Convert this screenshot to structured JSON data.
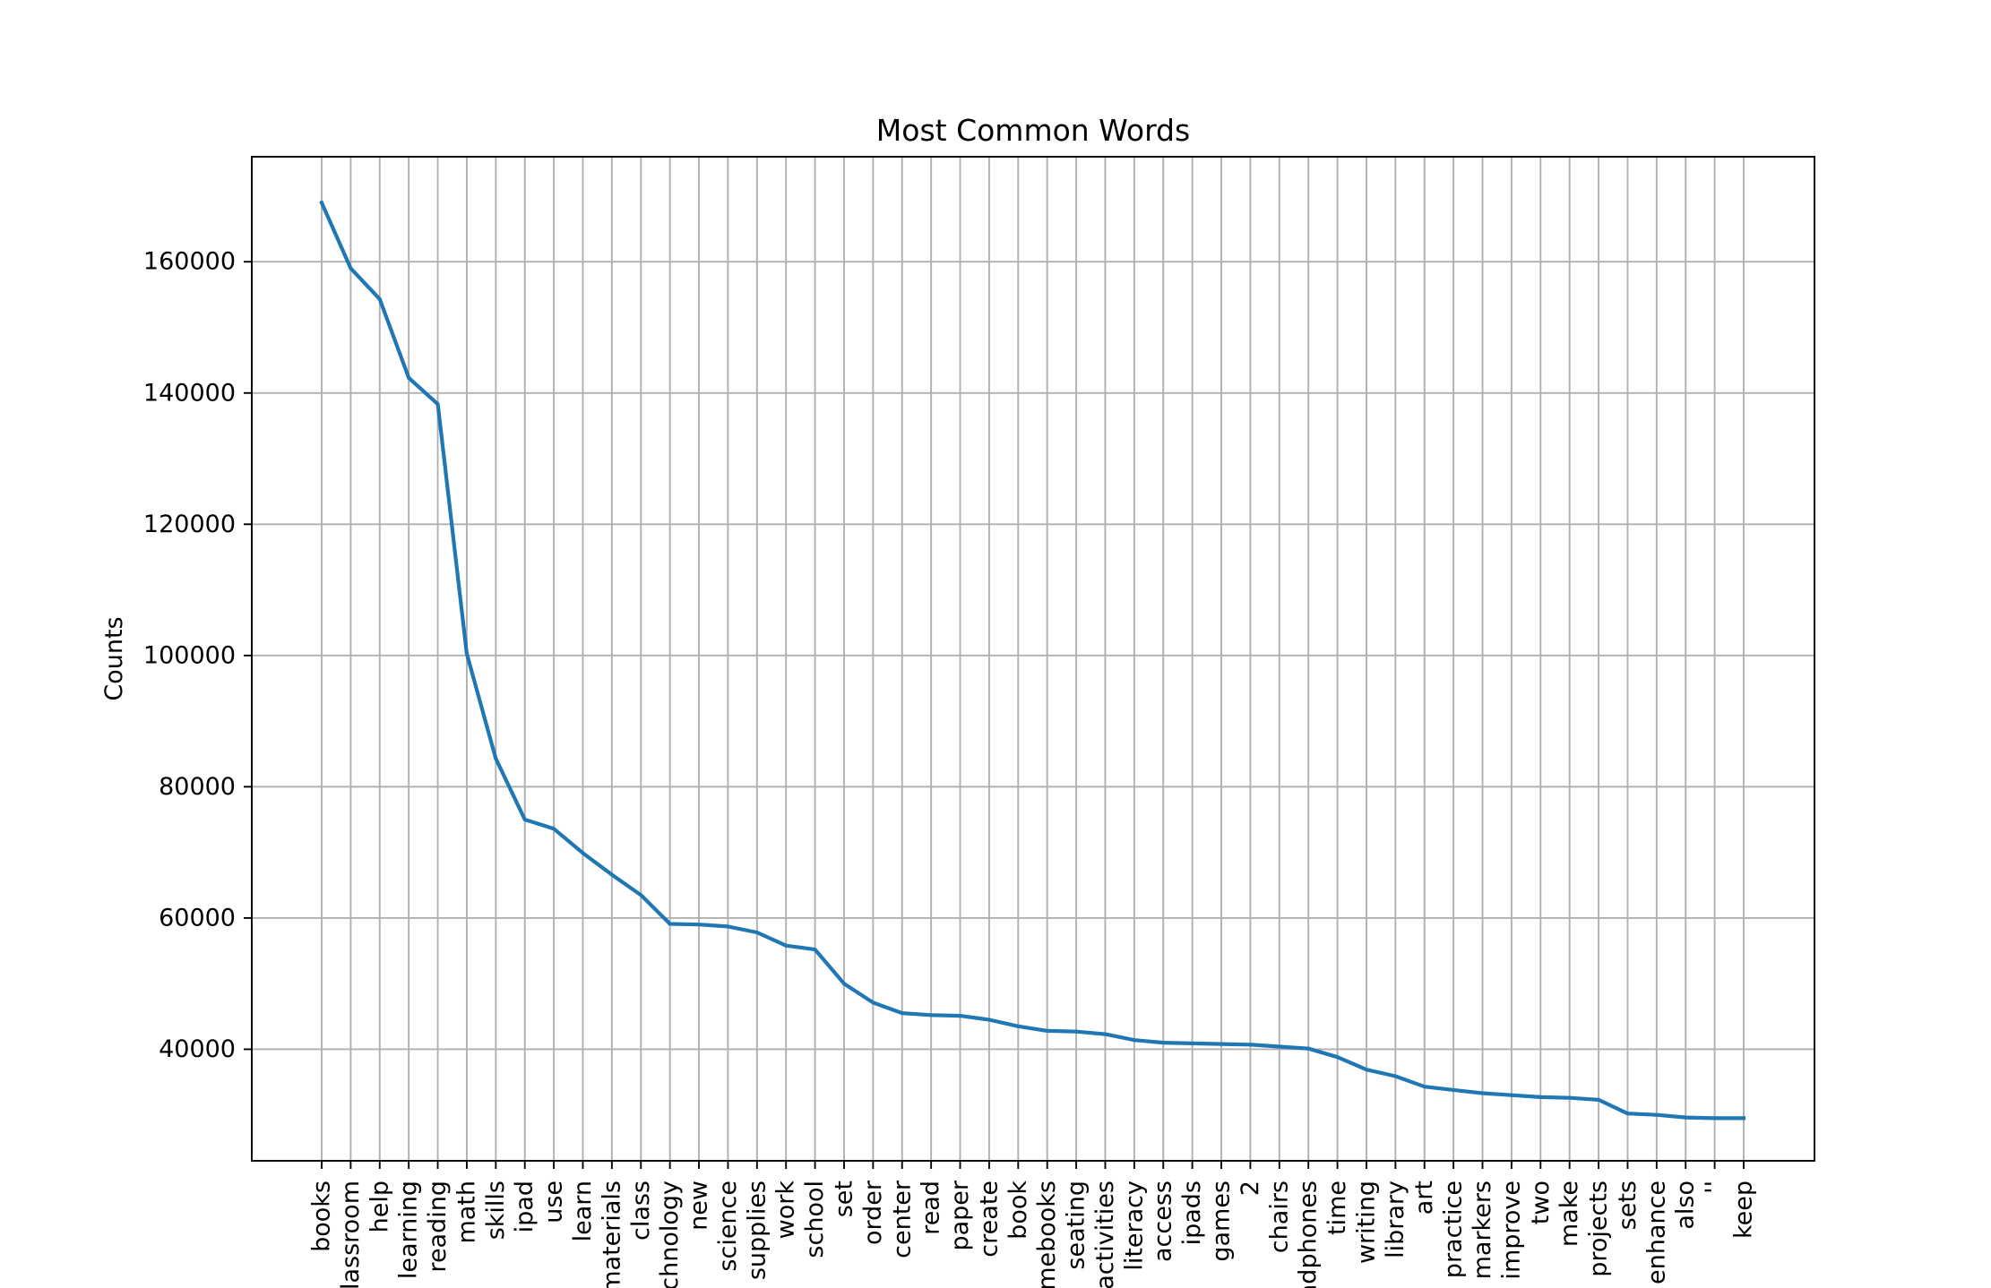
{
  "chart_data": {
    "type": "line",
    "title": "Most Common Words",
    "xlabel": "",
    "ylabel": "Counts",
    "ylim": [
      23000,
      176000
    ],
    "yticks": [
      40000,
      60000,
      80000,
      100000,
      120000,
      140000,
      160000
    ],
    "grid": true,
    "line_color": "#1f77b4",
    "categories": [
      "books",
      "classroom",
      "help",
      "learning",
      "reading",
      "math",
      "skills",
      "ipad",
      "use",
      "learn",
      "materials",
      "class",
      "technology",
      "new",
      "science",
      "supplies",
      "work",
      "school",
      "set",
      "order",
      "center",
      "read",
      "paper",
      "create",
      "book",
      "chromebooks",
      "seating",
      "activities",
      "literacy",
      "access",
      "ipads",
      "games",
      "2",
      "chairs",
      "headphones",
      "time",
      "writing",
      "library",
      "art",
      "practice",
      "markers",
      "improve",
      "two",
      "make",
      "projects",
      "sets",
      "enhance",
      "also",
      "''",
      "keep"
    ],
    "series": [
      {
        "values": [
          169000,
          159000,
          154300,
          142300,
          138300,
          100300,
          84300,
          75000,
          73600,
          69900,
          66600,
          63500,
          59100,
          59000,
          58700,
          57800,
          55800,
          55200,
          50000,
          47100,
          45500,
          45200,
          45100,
          44500,
          43500,
          42800,
          42700,
          42300,
          41400,
          41000,
          40900,
          40800,
          40700,
          40400,
          40100,
          38800,
          36900,
          35900,
          34300,
          33800,
          33300,
          33000,
          32700,
          32600,
          32300,
          30200,
          30000,
          29600,
          29500,
          29500
        ]
      }
    ]
  }
}
